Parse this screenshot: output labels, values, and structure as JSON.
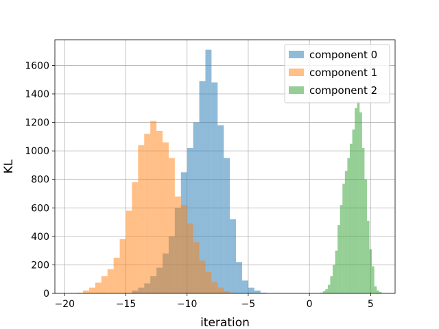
{
  "chart_data": {
    "type": "histogram",
    "title": "",
    "xlabel": "iteration",
    "ylabel": "KL",
    "xlim": [
      -20.8,
      7.0
    ],
    "ylim": [
      0,
      1780
    ],
    "xticks": [
      -20,
      -15,
      -10,
      -5,
      0,
      5
    ],
    "xtick_labels": [
      "−20",
      "−15",
      "−10",
      "−5",
      "0",
      "5"
    ],
    "yticks": [
      0,
      200,
      400,
      600,
      800,
      1000,
      1200,
      1400,
      1600
    ],
    "ytick_labels": [
      "0",
      "200",
      "400",
      "600",
      "800",
      "1000",
      "1200",
      "1400",
      "1600"
    ],
    "grid": true,
    "legend_position": "top-right",
    "series": [
      {
        "name": "component 0",
        "color": "#1f77b4",
        "alpha": 0.5,
        "bin_start": -14.5,
        "bin_width": 0.5,
        "values": [
          20,
          40,
          70,
          120,
          180,
          280,
          400,
          600,
          850,
          1020,
          1200,
          1490,
          1710,
          1480,
          1180,
          950,
          520,
          220,
          90,
          40,
          20,
          5
        ]
      },
      {
        "name": "component 1",
        "color": "#ff7f0e",
        "alpha": 0.5,
        "bin_start": -19.5,
        "bin_width": 0.5,
        "values": [
          2,
          5,
          20,
          40,
          75,
          120,
          170,
          250,
          380,
          580,
          780,
          1040,
          1120,
          1210,
          1140,
          1060,
          950,
          680,
          620,
          490,
          360,
          230,
          150,
          80,
          40,
          15,
          5
        ]
      },
      {
        "name": "component 2",
        "color": "#2ca02c",
        "alpha": 0.5,
        "bin_start": 0.9,
        "bin_width": 0.2,
        "values": [
          5,
          15,
          30,
          60,
          120,
          200,
          300,
          480,
          620,
          770,
          860,
          950,
          1050,
          1150,
          1300,
          1350,
          1270,
          1020,
          800,
          510,
          310,
          190,
          50,
          20,
          10
        ]
      }
    ]
  }
}
